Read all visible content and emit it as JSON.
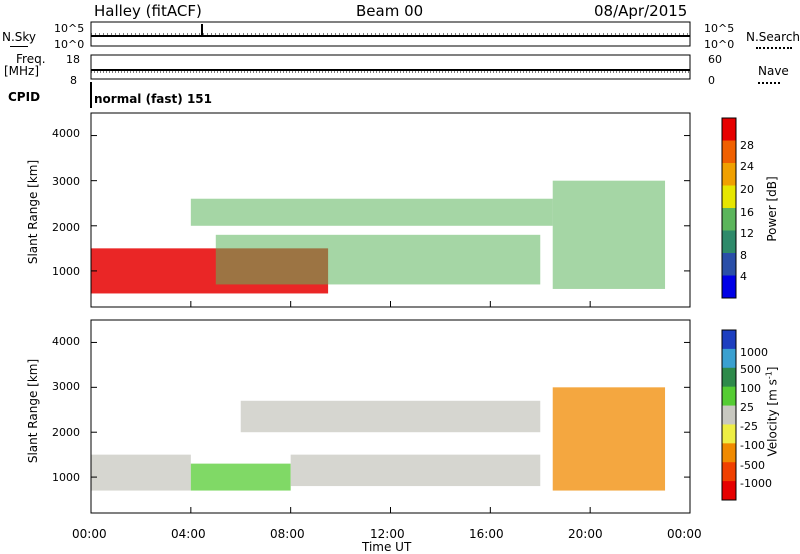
{
  "header": {
    "station": "Halley (fitACF)",
    "beam": "Beam 00",
    "date": "08/Apr/2015"
  },
  "top_panels": {
    "nsky_label": "N.Sky",
    "nsky_ticks": [
      "10^5",
      "10^0"
    ],
    "nsearch_label": "N.Search",
    "nsearch_ticks": [
      "10^5",
      "10^0"
    ],
    "freq_label": "Freq.",
    "freq_unit": "[MHz]",
    "freq_ticks": [
      "18",
      "8"
    ],
    "nave_label": "Nave",
    "nave_ticks": [
      "60",
      "0"
    ],
    "cpid_label": "CPID",
    "cpid_text": "normal (fast) 151"
  },
  "chart_data": [
    {
      "type": "heatmap",
      "panel": "power",
      "ylabel": "Slant Range [km]",
      "ylim": [
        200,
        4500
      ],
      "yticks": [
        "4000",
        "3000",
        "2000",
        "1000"
      ],
      "colorbar_label": "Power [dB]",
      "colorbar_ticks": [
        "28",
        "24",
        "20",
        "16",
        "12",
        "8",
        "4"
      ],
      "colors": [
        "#0000e6",
        "#2a4fa8",
        "#2e8a6a",
        "#5bb55b",
        "#e6e600",
        "#f0a000",
        "#f06000",
        "#e60000"
      ],
      "regions": [
        {
          "t0": 0.0,
          "t1": 9.5,
          "r0": 500,
          "r1": 1500,
          "level": "high"
        },
        {
          "t0": 4.0,
          "t1": 18.5,
          "r0": 2000,
          "r1": 2600,
          "level": "medium"
        },
        {
          "t0": 5.0,
          "t1": 18.0,
          "r0": 700,
          "r1": 1800,
          "level": "medium"
        },
        {
          "t0": 18.5,
          "t1": 23.0,
          "r0": 600,
          "r1": 3000,
          "level": "medium"
        }
      ]
    },
    {
      "type": "heatmap",
      "panel": "velocity",
      "ylabel": "Slant Range [km]",
      "xlabel": "Time UT",
      "xticks": [
        "00:00",
        "04:00",
        "08:00",
        "12:00",
        "16:00",
        "20:00",
        "00:00"
      ],
      "ylim": [
        200,
        4500
      ],
      "yticks": [
        "4000",
        "3000",
        "2000",
        "1000"
      ],
      "colorbar_label": "Velocity [m s",
      "colorbar_unit_sup": "-1",
      "colorbar_unit_close": "]",
      "colorbar_ticks": [
        "1000",
        "500",
        "100",
        "25",
        "-25",
        "-100",
        "-500",
        "-1000"
      ],
      "colors": [
        "#1d3fc0",
        "#3aa0d0",
        "#2e8a4a",
        "#55cc33",
        "#c8c8c0",
        "#eeee44",
        "#f08a00",
        "#f04000",
        "#e60000"
      ],
      "regions": [
        {
          "t0": 0.0,
          "t1": 4.0,
          "r0": 700,
          "r1": 1500,
          "velocity": 0
        },
        {
          "t0": 4.0,
          "t1": 8.0,
          "r0": 700,
          "r1": 1300,
          "velocity": 75
        },
        {
          "t0": 8.0,
          "t1": 18.0,
          "r0": 800,
          "r1": 1500,
          "velocity": 0
        },
        {
          "t0": 6.0,
          "t1": 18.0,
          "r0": 2000,
          "r1": 2700,
          "velocity": 0
        },
        {
          "t0": 18.5,
          "t1": 23.0,
          "r0": 700,
          "r1": 3000,
          "velocity": -300
        }
      ]
    }
  ]
}
